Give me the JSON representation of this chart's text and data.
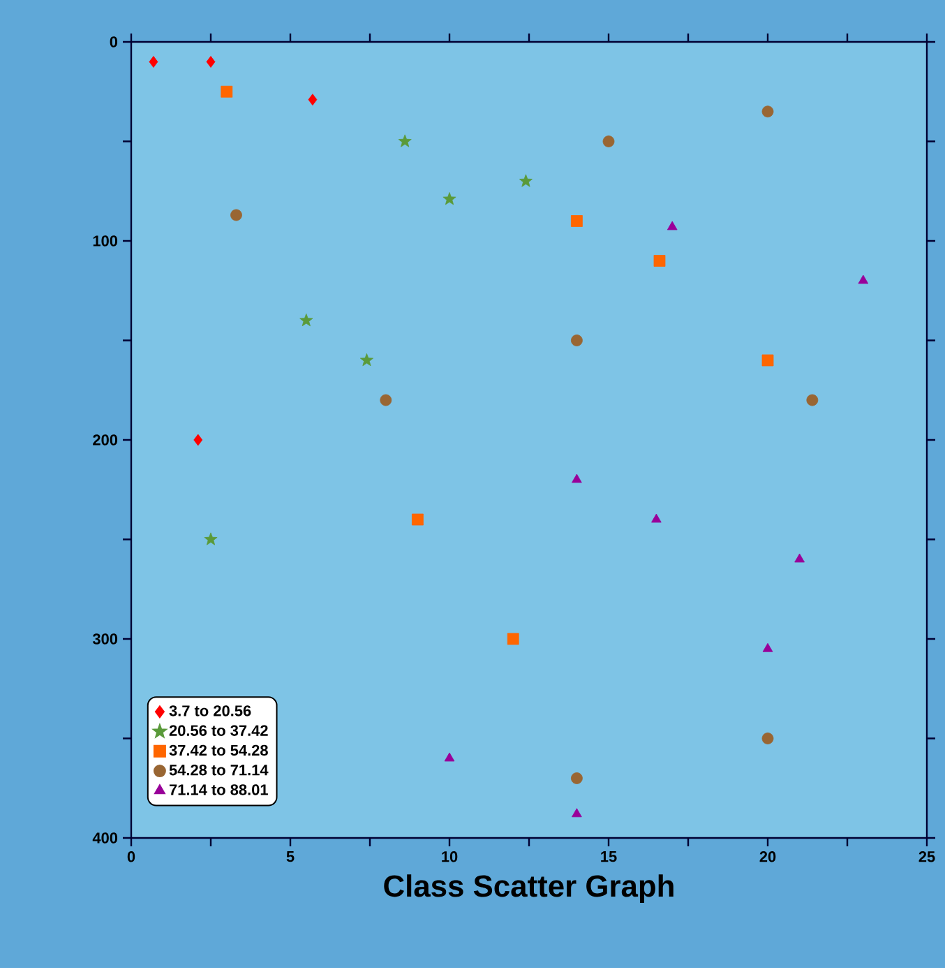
{
  "chart_data": {
    "type": "scatter",
    "xlabel": "Class Scatter Graph",
    "xlim": [
      0,
      25
    ],
    "ylim": [
      400,
      0
    ],
    "xticks": [
      0,
      {
        "value": 2.5,
        "label": null
      },
      5,
      {
        "value": 7.5,
        "label": null
      },
      10,
      {
        "value": 12.5,
        "label": null
      },
      15,
      {
        "value": 17.5,
        "label": null
      },
      20,
      {
        "value": 22.5,
        "label": null
      },
      25
    ],
    "yticks": [
      0,
      {
        "value": 50,
        "label": null
      },
      100,
      {
        "value": 150,
        "label": null
      },
      200,
      {
        "value": 250,
        "label": null
      },
      300,
      {
        "value": 350,
        "label": null
      },
      400
    ],
    "legend": "bottom left",
    "grid": false,
    "series": [
      {
        "name": "3.7 to 20.56",
        "color": "#ff0000",
        "marker": "diamond",
        "x": [
          0.7,
          2.5,
          5.7,
          2.1
        ],
        "values": [
          10,
          10,
          29,
          200
        ]
      },
      {
        "name": "20.56 to 37.42",
        "color": "#5a9a3a",
        "marker": "star",
        "x": [
          8.6,
          10.0,
          12.4,
          5.5,
          7.4,
          2.5
        ],
        "values": [
          50,
          79,
          70,
          140,
          160,
          250
        ]
      },
      {
        "name": "37.42 to 54.28",
        "color": "#ff6600",
        "marker": "square",
        "x": [
          3.0,
          14.0,
          16.6,
          20.0,
          9.0,
          12.0
        ],
        "values": [
          25,
          90,
          110,
          160,
          240,
          300
        ]
      },
      {
        "name": "54.28 to 71.14",
        "color": "#996633",
        "marker": "circle",
        "x": [
          3.3,
          8.0,
          20.0,
          15.0,
          14.0,
          21.4,
          20.0,
          14.0
        ],
        "values": [
          87,
          180,
          35,
          50,
          150,
          180,
          350,
          370
        ]
      },
      {
        "name": "71.14 to 88.01",
        "color": "#990099",
        "marker": "triangle",
        "x": [
          17.0,
          23.0,
          14.0,
          16.5,
          21.0,
          20.0,
          14.0,
          10.0
        ],
        "values": [
          93,
          120,
          220,
          240,
          260,
          305,
          388,
          360
        ]
      }
    ]
  }
}
